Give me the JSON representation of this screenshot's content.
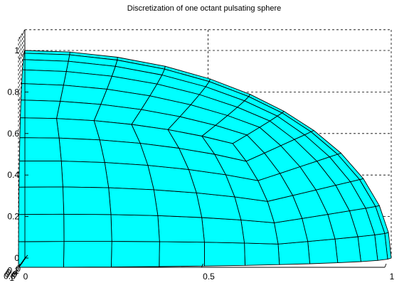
{
  "chart_data": {
    "type": "surface",
    "title": "Discretization of one octant pulsating sphere",
    "xlabel": "",
    "ylabel": "",
    "zlabel": "",
    "surface": "sphere-octant",
    "radius": 1,
    "grid": true,
    "mesh": {
      "patches_per_triangle_side": 6
    },
    "face_color": "#00ffff",
    "edge_color": "#000000",
    "background_color": "#ffffff",
    "xlim": [
      0,
      1
    ],
    "ylim": [
      0,
      1
    ],
    "zlim": [
      0,
      1.1
    ],
    "x_ticks": [
      "0",
      "0.2",
      "0.4",
      "0.6",
      "0.8",
      "1"
    ],
    "y_ticks": [
      "0",
      "0.5",
      "1"
    ],
    "z_ticks": [
      "0",
      "0.2",
      "0.4",
      "0.6",
      "0.8",
      "1"
    ]
  }
}
